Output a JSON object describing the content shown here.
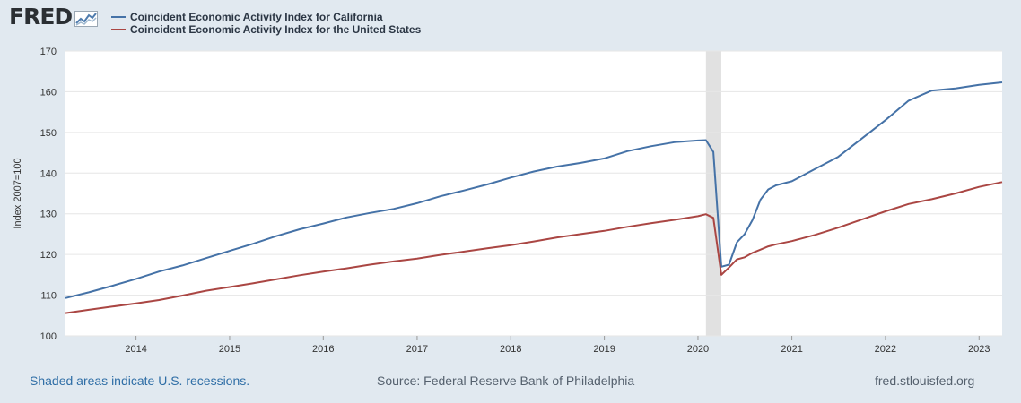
{
  "logo": {
    "text": "FRED",
    "graph_icon": "line-chart-icon"
  },
  "footer": {
    "recession_note": "Shaded areas indicate U.S. recessions.",
    "source": "Source: Federal Reserve Bank of Philadelphia",
    "site": "fred.stlouisfed.org"
  },
  "colors": {
    "california": "#4572a7",
    "united_states": "#aa4643",
    "recession": "#e1e1e1",
    "background": "#e1e9f0"
  },
  "chart_data": {
    "type": "line",
    "ylabel": "Index 2007=100",
    "ylim": [
      100,
      170
    ],
    "yticks": [
      100,
      110,
      120,
      130,
      140,
      150,
      160,
      170
    ],
    "xlim": [
      "2013-04-01",
      "2023-04-01"
    ],
    "xticks": [
      "2014",
      "2015",
      "2016",
      "2017",
      "2018",
      "2019",
      "2020",
      "2021",
      "2022",
      "2023"
    ],
    "grid": true,
    "legend_position": "top-left",
    "recessions": [
      {
        "start": "2020-02-01",
        "end": "2020-04-01"
      }
    ],
    "series": [
      {
        "name": "Coincident Economic Activity Index for California",
        "color": "#4572a7",
        "points": [
          [
            "2013-04-01",
            109.3
          ],
          [
            "2013-07-01",
            110.7
          ],
          [
            "2013-10-01",
            112.3
          ],
          [
            "2014-01-01",
            114.0
          ],
          [
            "2014-04-01",
            115.8
          ],
          [
            "2014-07-01",
            117.3
          ],
          [
            "2014-10-01",
            119.1
          ],
          [
            "2015-01-01",
            120.9
          ],
          [
            "2015-04-01",
            122.6
          ],
          [
            "2015-07-01",
            124.5
          ],
          [
            "2015-10-01",
            126.2
          ],
          [
            "2016-01-01",
            127.6
          ],
          [
            "2016-04-01",
            129.1
          ],
          [
            "2016-07-01",
            130.2
          ],
          [
            "2016-10-01",
            131.2
          ],
          [
            "2017-01-01",
            132.6
          ],
          [
            "2017-04-01",
            134.3
          ],
          [
            "2017-07-01",
            135.7
          ],
          [
            "2017-10-01",
            137.2
          ],
          [
            "2018-01-01",
            138.9
          ],
          [
            "2018-04-01",
            140.4
          ],
          [
            "2018-07-01",
            141.6
          ],
          [
            "2018-10-01",
            142.5
          ],
          [
            "2019-01-01",
            143.6
          ],
          [
            "2019-04-01",
            145.4
          ],
          [
            "2019-07-01",
            146.6
          ],
          [
            "2019-10-01",
            147.6
          ],
          [
            "2020-01-01",
            148.0
          ],
          [
            "2020-02-01",
            148.1
          ],
          [
            "2020-03-01",
            145.2
          ],
          [
            "2020-04-01",
            117.0
          ],
          [
            "2020-05-01",
            117.5
          ],
          [
            "2020-06-01",
            123.0
          ],
          [
            "2020-07-01",
            125.0
          ],
          [
            "2020-08-01",
            128.5
          ],
          [
            "2020-09-01",
            133.5
          ],
          [
            "2020-10-01",
            136.0
          ],
          [
            "2020-11-01",
            137.0
          ],
          [
            "2021-01-01",
            138.0
          ],
          [
            "2021-04-01",
            141.0
          ],
          [
            "2021-07-01",
            144.0
          ],
          [
            "2021-10-01",
            148.5
          ],
          [
            "2022-01-01",
            153.0
          ],
          [
            "2022-04-01",
            157.8
          ],
          [
            "2022-07-01",
            160.3
          ],
          [
            "2022-10-01",
            160.8
          ],
          [
            "2023-01-01",
            161.7
          ],
          [
            "2023-04-01",
            162.3
          ]
        ]
      },
      {
        "name": "Coincident Economic Activity Index for the United States",
        "color": "#aa4643",
        "points": [
          [
            "2013-04-01",
            105.6
          ],
          [
            "2013-07-01",
            106.4
          ],
          [
            "2013-10-01",
            107.2
          ],
          [
            "2014-01-01",
            108.0
          ],
          [
            "2014-04-01",
            108.8
          ],
          [
            "2014-07-01",
            109.9
          ],
          [
            "2014-10-01",
            111.1
          ],
          [
            "2015-01-01",
            112.0
          ],
          [
            "2015-04-01",
            112.9
          ],
          [
            "2015-07-01",
            113.9
          ],
          [
            "2015-10-01",
            114.9
          ],
          [
            "2016-01-01",
            115.8
          ],
          [
            "2016-04-01",
            116.6
          ],
          [
            "2016-07-01",
            117.5
          ],
          [
            "2016-10-01",
            118.3
          ],
          [
            "2017-01-01",
            119.0
          ],
          [
            "2017-04-01",
            119.9
          ],
          [
            "2017-07-01",
            120.7
          ],
          [
            "2017-10-01",
            121.5
          ],
          [
            "2018-01-01",
            122.3
          ],
          [
            "2018-04-01",
            123.2
          ],
          [
            "2018-07-01",
            124.2
          ],
          [
            "2018-10-01",
            125.0
          ],
          [
            "2019-01-01",
            125.8
          ],
          [
            "2019-04-01",
            126.8
          ],
          [
            "2019-07-01",
            127.7
          ],
          [
            "2019-10-01",
            128.5
          ],
          [
            "2020-01-01",
            129.4
          ],
          [
            "2020-02-01",
            129.9
          ],
          [
            "2020-03-01",
            129.0
          ],
          [
            "2020-04-01",
            115.0
          ],
          [
            "2020-05-01",
            116.8
          ],
          [
            "2020-06-01",
            118.8
          ],
          [
            "2020-07-01",
            119.3
          ],
          [
            "2020-08-01",
            120.4
          ],
          [
            "2020-09-01",
            121.2
          ],
          [
            "2020-10-01",
            122.0
          ],
          [
            "2020-11-01",
            122.5
          ],
          [
            "2021-01-01",
            123.3
          ],
          [
            "2021-04-01",
            124.8
          ],
          [
            "2021-07-01",
            126.6
          ],
          [
            "2021-10-01",
            128.6
          ],
          [
            "2022-01-01",
            130.6
          ],
          [
            "2022-04-01",
            132.4
          ],
          [
            "2022-07-01",
            133.6
          ],
          [
            "2022-10-01",
            135.0
          ],
          [
            "2023-01-01",
            136.6
          ],
          [
            "2023-04-01",
            137.8
          ]
        ]
      }
    ]
  }
}
